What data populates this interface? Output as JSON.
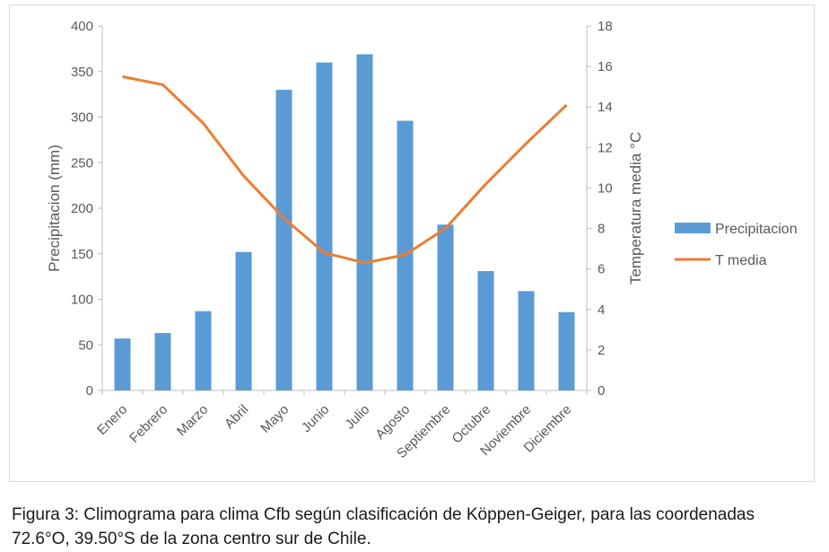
{
  "chart_data": {
    "type": "bar",
    "categories": [
      "Enero",
      "Febrero",
      "Marzo",
      "Abril",
      "Mayo",
      "Junio",
      "Julio",
      "Agosto",
      "Septiembre",
      "Octubre",
      "Noviembre",
      "Diciembre"
    ],
    "series": [
      {
        "name": "Precipitacion",
        "type": "bar",
        "axis": "left",
        "color": "#5b9bd5",
        "values": [
          57,
          63,
          87,
          152,
          330,
          360,
          369,
          296,
          182,
          131,
          109,
          86
        ]
      },
      {
        "name": "T media",
        "type": "line",
        "axis": "right",
        "color": "#ed7d31",
        "values": [
          15.5,
          15.1,
          13.2,
          10.6,
          8.5,
          6.8,
          6.3,
          6.7,
          8.0,
          10.2,
          12.2,
          14.1
        ]
      }
    ],
    "ylabel": "Precipitacion (mm)",
    "y2label": "Temperatura media °C",
    "ylim": [
      0,
      400
    ],
    "y2lim": [
      0,
      18
    ],
    "yticks": [
      "0",
      "50",
      "100",
      "150",
      "200",
      "250",
      "300",
      "350",
      "400"
    ],
    "y2ticks": [
      "0",
      "2",
      "4",
      "6",
      "8",
      "10",
      "12",
      "14",
      "16",
      "18"
    ],
    "grid": false,
    "legend_position": "right"
  },
  "caption": "Figura 3: Climograma para clima Cfb según clasificación de Köppen-Geiger, para las coordenadas 72.6°O, 39.50°S de la zona centro sur de Chile."
}
